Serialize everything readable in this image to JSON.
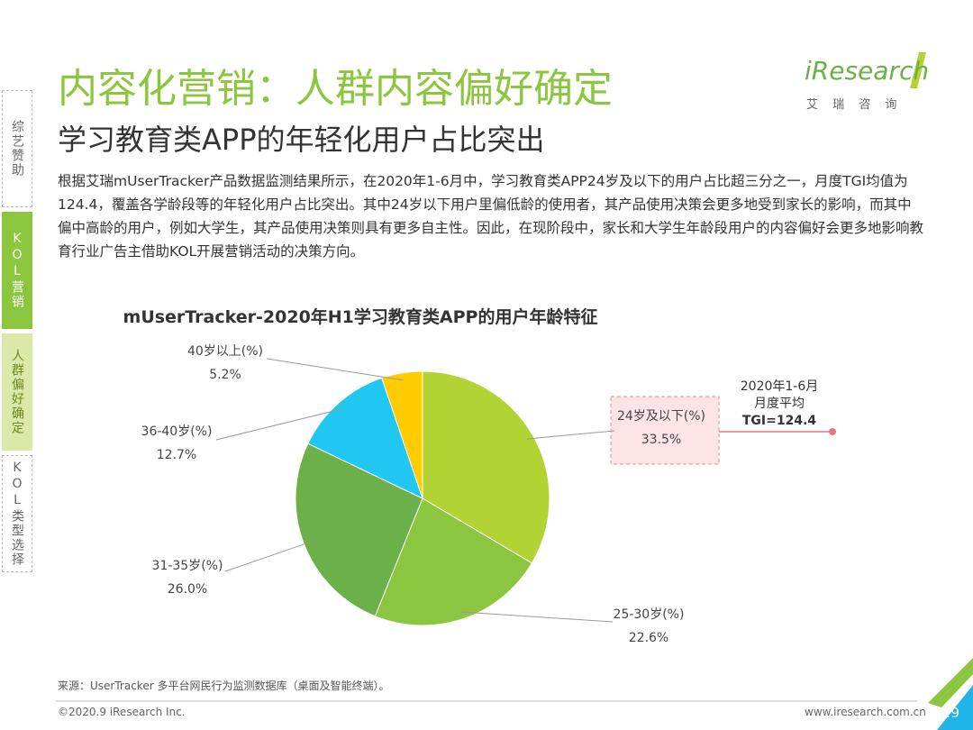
{
  "header": {
    "title": "内容化营销：人群内容偏好确定",
    "subtitle": "学习教育类APP的年轻化用户占比突出",
    "logo": "iResearch",
    "logo_sub": "艾 瑞 咨 询"
  },
  "sidebar": {
    "tabs": [
      "综艺赞助",
      "KOL营销",
      "人群偏好确定",
      "KOL类型选择"
    ]
  },
  "body": "根据艾瑞mUserTracker产品数据监测结果所示，在2020年1-6月中，学习教育类APP24岁及以下的用户占比超三分之一，月度TGI均值为124.4，覆盖各学龄段等的年轻化用户占比突出。其中24岁以下用户里偏低龄的使用者，其产品使用决策会更多地受到家长的影响，而其中偏中高龄的用户，例如大学生，其产品使用决策则具有更多自主性。因此，在现阶段中，家长和大学生年龄段用户的内容偏好会更多地影响教育行业广告主借助KOL开展营销活动的决策方向。",
  "chart_data": {
    "type": "pie",
    "title": "mUserTracker-2020年H1学习教育类APP的用户年龄特征",
    "categories": [
      "24岁及以下(%)",
      "25-30岁(%)",
      "31-35岁(%)",
      "36-40岁(%)",
      "40岁以上(%)"
    ],
    "values": [
      33.5,
      22.6,
      26.0,
      12.7,
      5.2
    ],
    "value_labels": [
      "33.5%",
      "22.6%",
      "26.0%",
      "12.7%",
      "5.2%"
    ],
    "colors": [
      "#b3d335",
      "#8cc640",
      "#6cb04a",
      "#20c7f0",
      "#ffcc00"
    ],
    "annotation": [
      "2020年1-6月",
      "月度平均",
      "TGI=124.4"
    ]
  },
  "footer": {
    "source": "来源：UserTracker 多平台网民行为监测数据库（桌面及智能终端）。",
    "copyright": "©2020.9 iResearch Inc.",
    "url": "www.iresearch.com.cn",
    "page": "29"
  }
}
